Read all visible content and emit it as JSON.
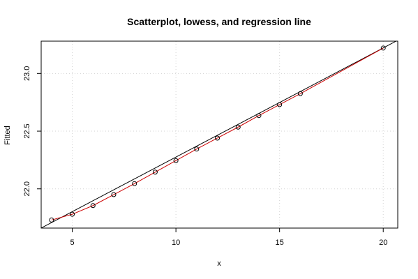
{
  "chart_data": {
    "type": "scatter",
    "title": "Scatterplot, lowess, and regression line",
    "xlabel": "x",
    "ylabel": "Fitted",
    "xlim": [
      3.5,
      20.7
    ],
    "ylim": [
      21.66,
      23.28
    ],
    "x_ticks": [
      5,
      10,
      15,
      20
    ],
    "y_ticks": [
      22.0,
      22.5,
      23.0
    ],
    "x_tick_labels": [
      "5",
      "10",
      "15",
      "20"
    ],
    "y_tick_labels": [
      "22.0",
      "22.5",
      "23.0"
    ],
    "grid": true,
    "points": [
      {
        "x": 4,
        "y": 21.73
      },
      {
        "x": 5,
        "y": 21.78
      },
      {
        "x": 6,
        "y": 21.855
      },
      {
        "x": 7,
        "y": 21.95
      },
      {
        "x": 8,
        "y": 22.045
      },
      {
        "x": 9,
        "y": 22.145
      },
      {
        "x": 10,
        "y": 22.245
      },
      {
        "x": 11,
        "y": 22.345
      },
      {
        "x": 12,
        "y": 22.44
      },
      {
        "x": 13,
        "y": 22.535
      },
      {
        "x": 14,
        "y": 22.635
      },
      {
        "x": 15,
        "y": 22.73
      },
      {
        "x": 16,
        "y": 22.825
      },
      {
        "x": 20,
        "y": 23.22
      }
    ],
    "regression_line": {
      "intercept": 21.3293,
      "slope": 0.09461,
      "color": "#000000"
    },
    "lowess_line": {
      "color": "#cc0000",
      "x": [
        4,
        5,
        6,
        7,
        8,
        9,
        10,
        11,
        12,
        13,
        14,
        15,
        16,
        20
      ],
      "y": [
        21.73,
        21.78,
        21.855,
        21.95,
        22.045,
        22.145,
        22.245,
        22.345,
        22.44,
        22.535,
        22.635,
        22.73,
        22.825,
        23.22
      ]
    },
    "colors": {
      "points": "#000000",
      "grid": "#d3d3d3",
      "axis": "#000000"
    }
  }
}
